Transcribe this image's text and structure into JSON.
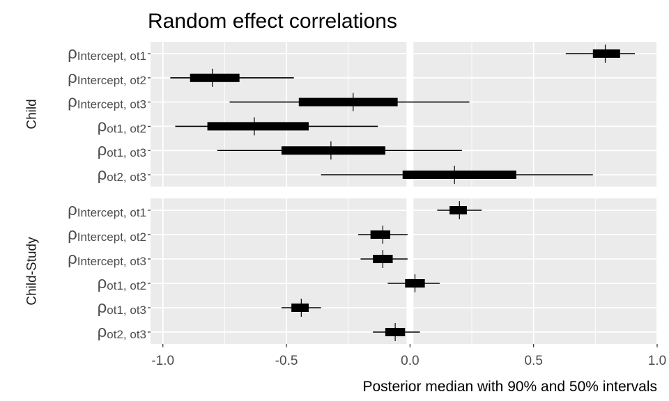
{
  "chart_data": {
    "type": "interval",
    "title": "Random effect correlations",
    "xlabel": "Posterior median with 90% and 50% intervals",
    "xlim": [
      -1.05,
      1.0
    ],
    "x_ticks": [
      -1.0,
      -0.5,
      0.0,
      0.5,
      1.0
    ],
    "x_tick_labels": [
      "-1.0",
      "-0.5",
      "0.0",
      "0.5",
      "1.0"
    ],
    "grid": true,
    "panels": [
      {
        "label": "Child",
        "rows": [
          {
            "sym": "ρ",
            "sub": "Intercept, ot1",
            "median": 0.79,
            "l90": 0.63,
            "u90": 0.91,
            "l50": 0.74,
            "u50": 0.85
          },
          {
            "sym": "ρ",
            "sub": "Intercept, ot2",
            "median": -0.8,
            "l90": -0.97,
            "u90": -0.47,
            "l50": -0.89,
            "u50": -0.69
          },
          {
            "sym": "ρ",
            "sub": "Intercept, ot3",
            "median": -0.23,
            "l90": -0.73,
            "u90": 0.24,
            "l50": -0.45,
            "u50": -0.05
          },
          {
            "sym": "ρ",
            "sub": "ot1, ot2",
            "median": -0.63,
            "l90": -0.95,
            "u90": -0.13,
            "l50": -0.82,
            "u50": -0.41
          },
          {
            "sym": "ρ",
            "sub": "ot1, ot3",
            "median": -0.32,
            "l90": -0.78,
            "u90": 0.21,
            "l50": -0.52,
            "u50": -0.1
          },
          {
            "sym": "ρ",
            "sub": "ot2, ot3",
            "median": 0.18,
            "l90": -0.36,
            "u90": 0.74,
            "l50": -0.03,
            "u50": 0.43
          }
        ]
      },
      {
        "label": "Child-Study",
        "rows": [
          {
            "sym": "ρ",
            "sub": "Intercept, ot1",
            "median": 0.2,
            "l90": 0.11,
            "u90": 0.29,
            "l50": 0.16,
            "u50": 0.23
          },
          {
            "sym": "ρ",
            "sub": "Intercept, ot2",
            "median": -0.11,
            "l90": -0.21,
            "u90": -0.01,
            "l50": -0.16,
            "u50": -0.08
          },
          {
            "sym": "ρ",
            "sub": "Intercept, ot3",
            "median": -0.11,
            "l90": -0.2,
            "u90": -0.01,
            "l50": -0.15,
            "u50": -0.07
          },
          {
            "sym": "ρ",
            "sub": "ot1, ot2",
            "median": 0.02,
            "l90": -0.09,
            "u90": 0.12,
            "l50": -0.02,
            "u50": 0.06
          },
          {
            "sym": "ρ",
            "sub": "ot1, ot3",
            "median": -0.44,
            "l90": -0.52,
            "u90": -0.36,
            "l50": -0.48,
            "u50": -0.41
          },
          {
            "sym": "ρ",
            "sub": "ot2, ot3",
            "median": -0.06,
            "l90": -0.15,
            "u90": 0.04,
            "l50": -0.1,
            "u50": -0.02
          }
        ]
      }
    ]
  }
}
